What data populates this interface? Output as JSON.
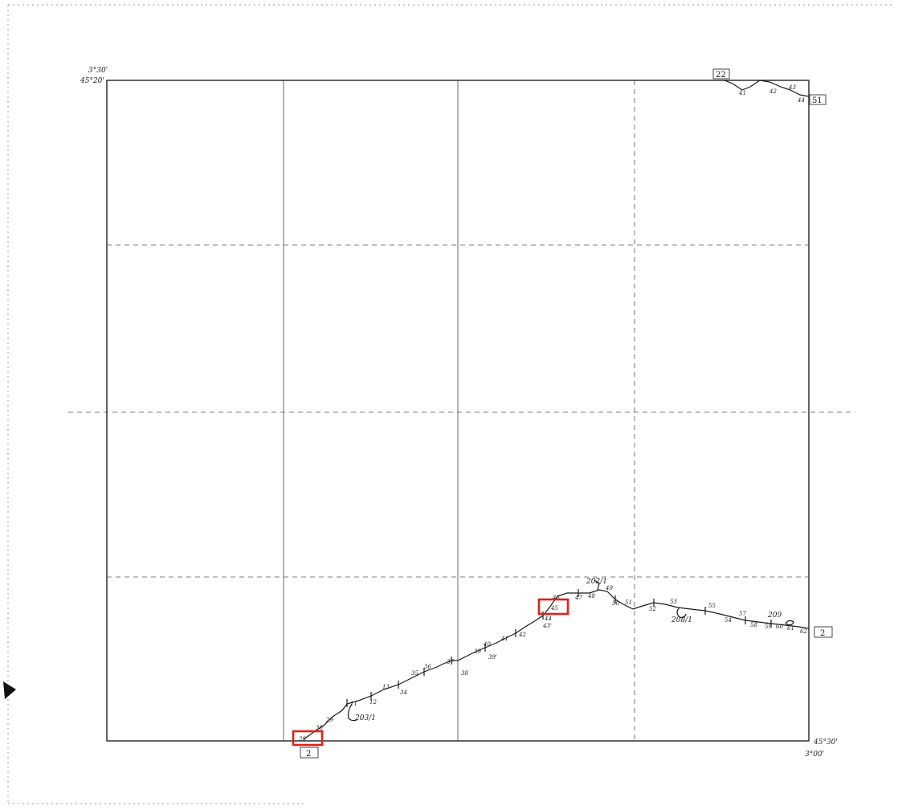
{
  "coords": {
    "top_left_lon": "3°30'",
    "top_left_lat": "45°20'",
    "bottom_right_lat": "45°30'",
    "bottom_right_lon": "3°00'"
  },
  "sheet_refs": {
    "bottom": "2",
    "right": "2",
    "top": "22",
    "top_right": "51"
  },
  "route_labels": [
    "29",
    "30",
    "11",
    "12",
    "13",
    "34",
    "35",
    "36",
    "37",
    "38",
    "39",
    "39'",
    "40",
    "41",
    "42",
    "43'",
    "44",
    "46",
    "47",
    "48",
    "49",
    "50",
    "51",
    "52",
    "53",
    "55",
    "54",
    "57",
    "58",
    "59",
    "60",
    "61",
    "62",
    "41",
    "42",
    "43",
    "44"
  ],
  "side_labels": [
    "203/1",
    "202/1",
    "208/1",
    "209"
  ],
  "highlights": [
    "28",
    "45"
  ],
  "colors": {
    "highlight": "#e0201b",
    "ink": "#1a1a1a"
  }
}
